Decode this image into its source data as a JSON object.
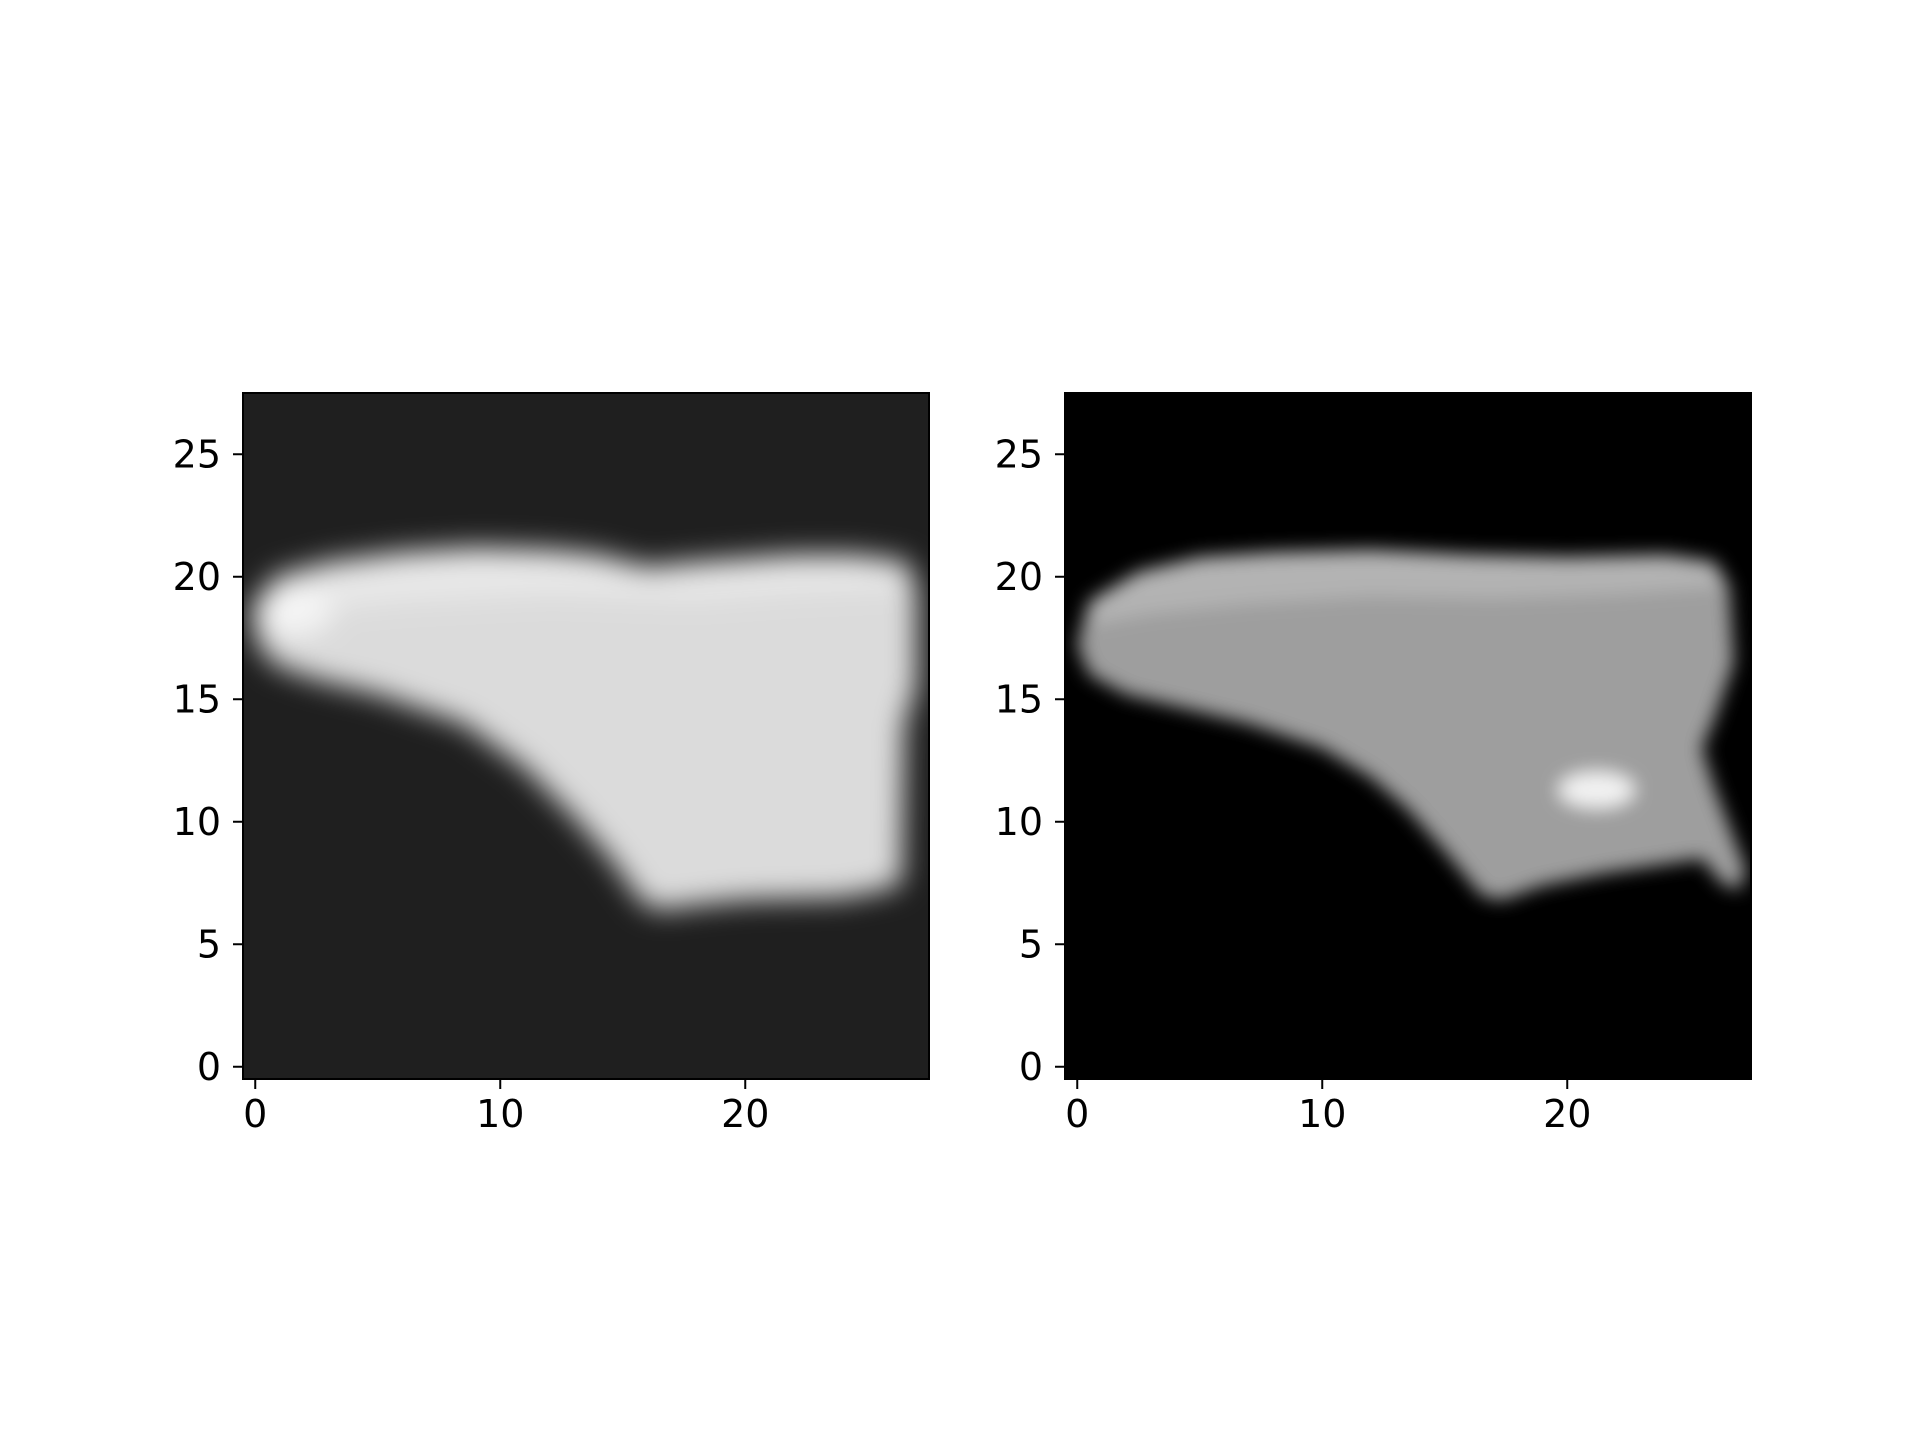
{
  "chart_data": [
    {
      "type": "heatmap",
      "title": "",
      "colormap": "gray",
      "image_size": [
        28,
        28
      ],
      "x_ticks": [
        {
          "value": 0,
          "label": "0"
        },
        {
          "value": 10,
          "label": "10"
        },
        {
          "value": 20,
          "label": "20"
        }
      ],
      "y_ticks": [
        {
          "value": 0,
          "label": "0"
        },
        {
          "value": 5,
          "label": "5"
        },
        {
          "value": 10,
          "label": "10"
        },
        {
          "value": 15,
          "label": "15"
        },
        {
          "value": 20,
          "label": "20"
        },
        {
          "value": 25,
          "label": "25"
        }
      ],
      "xlim": [
        -0.5,
        27.5
      ],
      "ylim": [
        27.5,
        -0.5
      ],
      "background_level": 0.12,
      "shoe": {
        "upper_outline": [
          [
            0,
            17.4
          ],
          [
            0,
            18.8
          ],
          [
            0.8,
            20
          ],
          [
            3,
            20.6
          ],
          [
            6,
            21
          ],
          [
            9,
            21.2
          ],
          [
            12,
            21.1
          ],
          [
            14,
            20.9
          ],
          [
            16,
            20.4
          ],
          [
            18,
            20.6
          ],
          [
            22,
            20.9
          ],
          [
            24.5,
            20.9
          ],
          [
            26.6,
            20.6
          ],
          [
            27,
            19.5
          ],
          [
            27,
            15.5
          ],
          [
            26.5,
            14
          ],
          [
            26.4,
            7.6
          ],
          [
            26,
            7.3
          ],
          [
            24,
            6.9
          ],
          [
            20,
            6.8
          ],
          [
            18,
            6.6
          ],
          [
            16.5,
            6.4
          ],
          [
            15.8,
            6.7
          ],
          [
            14.5,
            8.5
          ],
          [
            13,
            10.2
          ],
          [
            11,
            12.2
          ],
          [
            8.5,
            14
          ],
          [
            5,
            15.2
          ],
          [
            2.5,
            15.8
          ],
          [
            0.8,
            16.4
          ]
        ],
        "upper_level": 0.86,
        "sole_outline": [
          [
            0,
            18.3
          ],
          [
            0.8,
            20
          ],
          [
            3,
            20.6
          ],
          [
            6,
            21
          ],
          [
            9,
            21.2
          ],
          [
            12,
            21.1
          ],
          [
            14,
            20.9
          ],
          [
            16,
            20.4
          ],
          [
            18,
            20.6
          ],
          [
            22,
            20.9
          ],
          [
            24.5,
            20.9
          ],
          [
            26.6,
            20.6
          ],
          [
            26.8,
            19.6
          ],
          [
            22,
            19.4
          ],
          [
            18,
            19.1
          ],
          [
            12,
            19.3
          ],
          [
            6,
            19
          ],
          [
            2,
            18.6
          ]
        ],
        "sole_level": 0.91,
        "toe_level": 0.96
      }
    },
    {
      "type": "heatmap",
      "title": "",
      "colormap": "gray",
      "image_size": [
        28,
        28
      ],
      "x_ticks": [
        {
          "value": 0,
          "label": "0"
        },
        {
          "value": 10,
          "label": "10"
        },
        {
          "value": 20,
          "label": "20"
        }
      ],
      "y_ticks": [
        {
          "value": 0,
          "label": "0"
        },
        {
          "value": 5,
          "label": "5"
        },
        {
          "value": 10,
          "label": "10"
        },
        {
          "value": 15,
          "label": "15"
        },
        {
          "value": 20,
          "label": "20"
        },
        {
          "value": 25,
          "label": "25"
        }
      ],
      "xlim": [
        -0.5,
        27.5
      ],
      "ylim": [
        27.5,
        -0.5
      ],
      "background_level": 0.0,
      "shoe": {
        "upper_outline": [
          [
            0,
            17.2
          ],
          [
            0.5,
            19
          ],
          [
            2.5,
            20.2
          ],
          [
            5,
            20.8
          ],
          [
            8,
            21
          ],
          [
            12,
            21.1
          ],
          [
            16,
            20.9
          ],
          [
            20,
            20.8
          ],
          [
            24,
            20.9
          ],
          [
            26,
            20.6
          ],
          [
            26.6,
            19.6
          ],
          [
            26.8,
            16.5
          ],
          [
            26,
            14.2
          ],
          [
            25.5,
            13
          ],
          [
            26,
            11.4
          ],
          [
            27.3,
            8
          ],
          [
            27,
            7.2
          ],
          [
            26.3,
            7.5
          ],
          [
            25.5,
            8.5
          ],
          [
            23.5,
            8.2
          ],
          [
            21.5,
            7.9
          ],
          [
            19,
            7.4
          ],
          [
            17.3,
            6.8
          ],
          [
            16.5,
            7
          ],
          [
            15,
            8.8
          ],
          [
            13.5,
            10.5
          ],
          [
            12,
            11.8
          ],
          [
            10,
            13
          ],
          [
            7,
            14
          ],
          [
            4.5,
            14.6
          ],
          [
            2,
            15.2
          ],
          [
            0.5,
            16
          ]
        ],
        "upper_level": 0.62,
        "sole_outline": [
          [
            0.3,
            18
          ],
          [
            0.5,
            19
          ],
          [
            2.5,
            20.2
          ],
          [
            5,
            20.8
          ],
          [
            8,
            21
          ],
          [
            12,
            21.1
          ],
          [
            16,
            20.9
          ],
          [
            20,
            20.8
          ],
          [
            24,
            20.9
          ],
          [
            26,
            20.6
          ],
          [
            26.5,
            19.6
          ],
          [
            22,
            19.3
          ],
          [
            17,
            19.1
          ],
          [
            12,
            19.2
          ],
          [
            7,
            18.9
          ],
          [
            3,
            18.5
          ]
        ],
        "sole_level": 0.7,
        "highlight_level": 0.95,
        "highlight_center": [
          21.2,
          11.3
        ]
      }
    }
  ]
}
